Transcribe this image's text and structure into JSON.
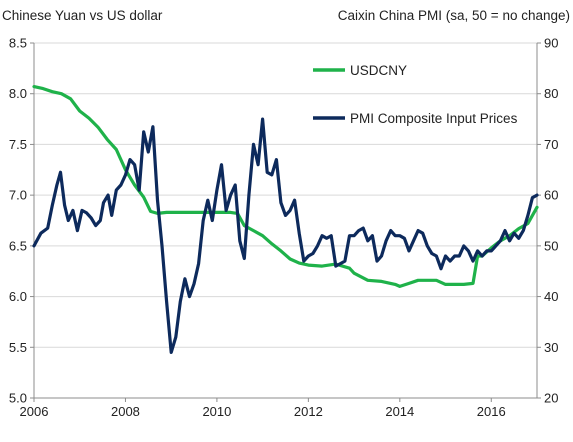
{
  "chart_data": {
    "type": "line",
    "left_axis_title": "Chinese Yuan vs US dollar",
    "right_axis_title": "Caixin China PMI (sa, 50 = no change)",
    "x_ticks": [
      "2006",
      "2008",
      "2010",
      "2012",
      "2014",
      "2016"
    ],
    "x_range": [
      2006.0,
      2017.0
    ],
    "y_left_ticks": [
      "8.5",
      "8.0",
      "7.5",
      "7.0",
      "6.5",
      "6.0",
      "5.5",
      "5.0"
    ],
    "y_left_range": [
      5.0,
      8.5
    ],
    "y_right_ticks": [
      "90",
      "80",
      "70",
      "60",
      "50",
      "40",
      "30",
      "20"
    ],
    "y_right_range": [
      20,
      90
    ],
    "grid": "horizontal",
    "legend_position": "top-right",
    "colors": {
      "usdcny": "#1fb24a",
      "pmi": "#0d2a5c",
      "grid": "#d9d9d9",
      "axis": "#8c8c8c"
    },
    "series": [
      {
        "name": "USDCNY",
        "axis": "left",
        "x": [
          2006.0,
          2006.2,
          2006.4,
          2006.6,
          2006.8,
          2007.0,
          2007.2,
          2007.4,
          2007.6,
          2007.8,
          2008.0,
          2008.2,
          2008.4,
          2008.55,
          2008.7,
          2008.9,
          2009.0,
          2009.3,
          2009.6,
          2009.9,
          2010.0,
          2010.3,
          2010.45,
          2010.6,
          2010.8,
          2011.0,
          2011.2,
          2011.4,
          2011.6,
          2011.8,
          2012.0,
          2012.3,
          2012.6,
          2012.9,
          2013.0,
          2013.3,
          2013.6,
          2013.9,
          2014.0,
          2014.2,
          2014.4,
          2014.6,
          2014.8,
          2015.0,
          2015.2,
          2015.4,
          2015.6,
          2015.7,
          2015.8,
          2016.0,
          2016.2,
          2016.4,
          2016.6,
          2016.8,
          2017.0
        ],
        "values": [
          8.07,
          8.05,
          8.02,
          8.0,
          7.95,
          7.83,
          7.76,
          7.67,
          7.55,
          7.45,
          7.25,
          7.1,
          6.98,
          6.84,
          6.82,
          6.83,
          6.83,
          6.83,
          6.83,
          6.83,
          6.83,
          6.83,
          6.82,
          6.7,
          6.65,
          6.6,
          6.52,
          6.45,
          6.37,
          6.33,
          6.31,
          6.3,
          6.32,
          6.28,
          6.23,
          6.16,
          6.15,
          6.12,
          6.1,
          6.13,
          6.16,
          6.16,
          6.16,
          6.12,
          6.12,
          6.12,
          6.13,
          6.4,
          6.4,
          6.48,
          6.55,
          6.6,
          6.67,
          6.72,
          6.88
        ]
      },
      {
        "name": "PMI Composite Input Prices",
        "axis": "right",
        "x": [
          2006.0,
          2006.15,
          2006.3,
          2006.4,
          2006.5,
          2006.58,
          2006.67,
          2006.75,
          2006.85,
          2006.95,
          2007.05,
          2007.15,
          2007.25,
          2007.35,
          2007.45,
          2007.52,
          2007.62,
          2007.7,
          2007.8,
          2007.9,
          2008.0,
          2008.1,
          2008.2,
          2008.3,
          2008.4,
          2008.5,
          2008.6,
          2008.7,
          2008.8,
          2008.9,
          2009.0,
          2009.1,
          2009.2,
          2009.3,
          2009.4,
          2009.5,
          2009.6,
          2009.7,
          2009.8,
          2009.9,
          2010.0,
          2010.1,
          2010.2,
          2010.3,
          2010.4,
          2010.5,
          2010.6,
          2010.7,
          2010.8,
          2010.9,
          2011.0,
          2011.1,
          2011.2,
          2011.3,
          2011.4,
          2011.5,
          2011.6,
          2011.7,
          2011.8,
          2011.9,
          2012.0,
          2012.1,
          2012.2,
          2012.3,
          2012.4,
          2012.5,
          2012.6,
          2012.7,
          2012.8,
          2012.9,
          2013.0,
          2013.1,
          2013.2,
          2013.3,
          2013.4,
          2013.5,
          2013.6,
          2013.7,
          2013.8,
          2013.9,
          2014.0,
          2014.1,
          2014.2,
          2014.3,
          2014.4,
          2014.5,
          2014.6,
          2014.7,
          2014.8,
          2014.9,
          2015.0,
          2015.1,
          2015.2,
          2015.3,
          2015.4,
          2015.5,
          2015.6,
          2015.7,
          2015.8,
          2015.9,
          2016.0,
          2016.1,
          2016.2,
          2016.3,
          2016.4,
          2016.5,
          2016.6,
          2016.7,
          2016.8,
          2016.9,
          2017.0
        ],
        "values": [
          50,
          52.5,
          53.5,
          58,
          62,
          64.5,
          58,
          55,
          57,
          53,
          57,
          56.5,
          55.5,
          54,
          55,
          58.5,
          60,
          56,
          61,
          62,
          64,
          67,
          66,
          61,
          72.5,
          68.5,
          73.5,
          59,
          50,
          39,
          29,
          32,
          39,
          43.5,
          40,
          42.5,
          46.5,
          55,
          59,
          55,
          61,
          66,
          57,
          60,
          62,
          51,
          47.5,
          60,
          70,
          66,
          75,
          64.5,
          64,
          67,
          58.5,
          56,
          57,
          59,
          52.5,
          47,
          48,
          48.5,
          50,
          52,
          51.5,
          52,
          46,
          46.5,
          47,
          52,
          52,
          53,
          53.5,
          51,
          52,
          47,
          48,
          51,
          53,
          52,
          52,
          51.5,
          49,
          51,
          53,
          52.5,
          50,
          48.5,
          48,
          45.5,
          48,
          47,
          48,
          48,
          50,
          49,
          47,
          49,
          48,
          49,
          49,
          50,
          51,
          53,
          51,
          52.5,
          51.5,
          53,
          56,
          59.5,
          60
        ]
      }
    ],
    "legend": [
      "USDCNY",
      "PMI Composite Input Prices"
    ]
  }
}
